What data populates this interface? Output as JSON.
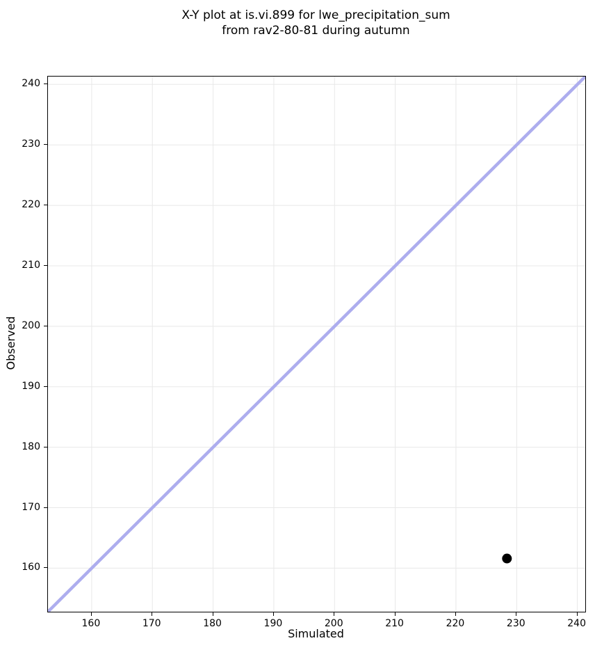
{
  "chart_data": {
    "type": "scatter",
    "title_line1": "X-Y plot at is.vi.899 for lwe_precipitation_sum",
    "title_line2": "from rav2-80-81 during autumn",
    "xlabel": "Simulated",
    "ylabel": "Observed",
    "xlim": [
      152.8,
      241.3
    ],
    "ylim": [
      152.8,
      241.3
    ],
    "xticks": [
      160,
      170,
      180,
      190,
      200,
      210,
      220,
      230,
      240
    ],
    "yticks": [
      160,
      170,
      180,
      190,
      200,
      210,
      220,
      230,
      240
    ],
    "grid": true,
    "legend_position": "none",
    "series": [
      {
        "name": "identity-line",
        "type": "line",
        "color": "#adadee",
        "points": [
          {
            "x": 152.8,
            "y": 152.8
          },
          {
            "x": 241.3,
            "y": 241.3
          }
        ]
      },
      {
        "name": "observed-vs-simulated",
        "type": "scatter",
        "marker_color": "#000000",
        "points": [
          {
            "x": 228.4,
            "y": 161.6
          }
        ]
      }
    ],
    "colors": {
      "background": "#ffffff",
      "grid": "#e8e8e8",
      "spine": "#000000",
      "identity_line": "#adadee",
      "marker": "#000000",
      "text": "#000000"
    }
  }
}
